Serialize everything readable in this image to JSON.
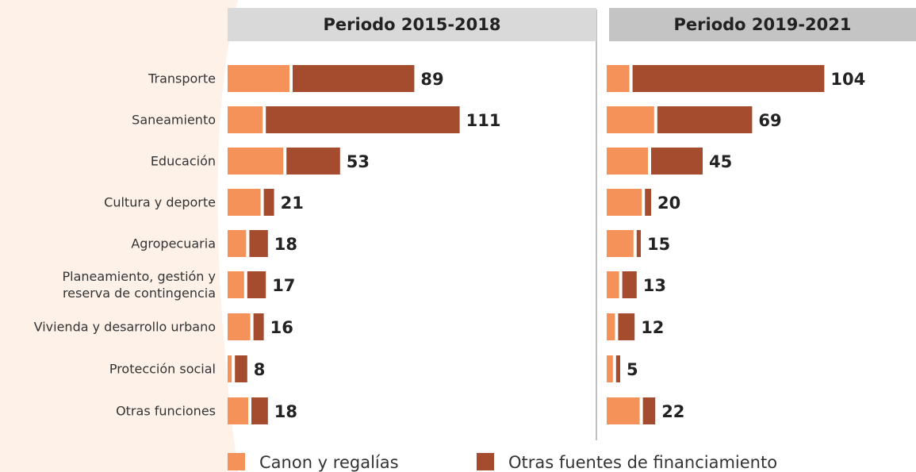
{
  "chart_data": {
    "type": "bar",
    "stacked": true,
    "categories": [
      "Transporte",
      "Saneamiento",
      "Educación",
      "Cultura y deporte",
      "Agropecuaria",
      "Planeamiento, gestión y\nreserva de contingencia",
      "Vivienda y desarrollo urbano",
      "Protección social",
      "Otras funciones"
    ],
    "legend": [
      {
        "name": "Canon y regalías",
        "color": "#f4925a"
      },
      {
        "name": "Otras fuentes de financiamiento",
        "color": "#a54b2e"
      }
    ],
    "panels": [
      {
        "title": "Periodo 2015-2018",
        "series": [
          {
            "values": [
              30,
              17,
              27,
              16,
              9,
              8,
              11,
              2,
              10
            ]
          },
          {
            "values": [
              59,
              94,
              26,
              5,
              9,
              9,
              5,
              6,
              8
            ]
          }
        ],
        "totals": [
          89,
          111,
          53,
          21,
          18,
          17,
          16,
          8,
          18
        ]
      },
      {
        "title": "Periodo 2019-2021",
        "series": [
          {
            "values": [
              11,
              23,
              20,
              17,
              13,
              6,
              4,
              3,
              16
            ]
          },
          {
            "values": [
              93,
              46,
              25,
              3,
              2,
              7,
              8,
              2,
              6
            ]
          }
        ],
        "totals": [
          104,
          69,
          45,
          20,
          15,
          13,
          12,
          5,
          22
        ]
      }
    ]
  }
}
